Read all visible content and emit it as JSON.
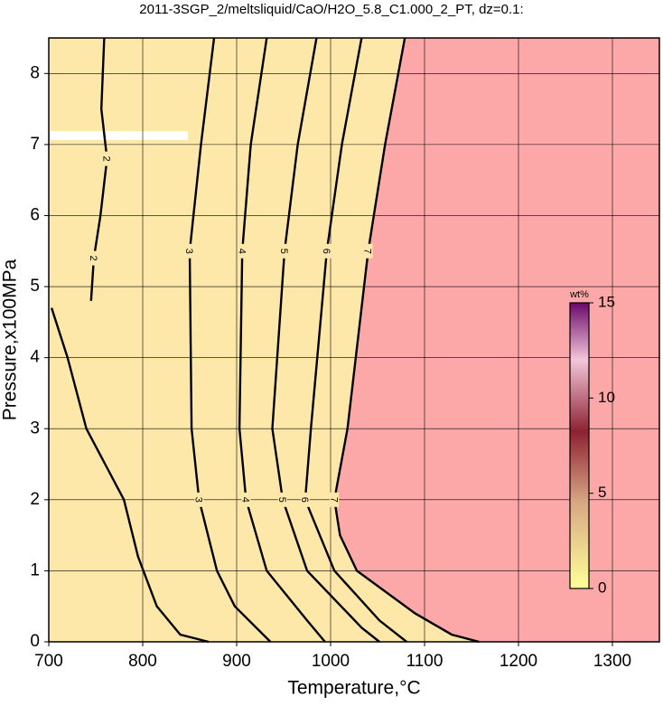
{
  "chart_data": {
    "type": "contour",
    "title": "2011-3SGP_2/meltsliquid/CaO/H2O_5.8_C1.000_2_PT, dz=0.1:",
    "x_label": "Temperature,°C",
    "y_label": "Pressure,x100MPa",
    "xlim": [
      700,
      1350
    ],
    "ylim": [
      0,
      8.5
    ],
    "xticks": [
      700,
      800,
      900,
      1000,
      1100,
      1200,
      1300
    ],
    "yticks": [
      0,
      1,
      2,
      3,
      4,
      5,
      6,
      7,
      8
    ],
    "grid": true,
    "colorbar": {
      "label": "wt%",
      "lim": [
        0,
        15
      ],
      "ticks": [
        0,
        5,
        10,
        15
      ]
    },
    "contours": [
      {
        "level": 2,
        "x": [
          759,
          756,
          762,
          755,
          748,
          745,
          null,
          703,
          720,
          740,
          760,
          780,
          795,
          815,
          840,
          870
        ],
        "y": [
          8.5,
          7.5,
          6.8,
          6,
          5.4,
          4.8,
          null,
          4.7,
          4,
          3,
          2.5,
          2,
          1.2,
          0.5,
          0.1,
          0
        ]
      },
      {
        "level": 3,
        "x": [
          876,
          862,
          850,
          852,
          860,
          879,
          898,
          936
        ],
        "y": [
          8.5,
          7,
          5.5,
          3,
          2,
          1,
          0.5,
          0
        ]
      },
      {
        "level": 4,
        "x": [
          932,
          915,
          906,
          903,
          910,
          932,
          975,
          994
        ],
        "y": [
          8.5,
          7,
          5.5,
          3,
          2,
          1,
          0.3,
          0
        ]
      },
      {
        "level": 5,
        "x": [
          985,
          965,
          951,
          938,
          949,
          975,
          1033,
          1052
        ],
        "y": [
          8.5,
          7,
          5.5,
          3,
          2,
          1,
          0.2,
          0
        ]
      },
      {
        "level": 6,
        "x": [
          1033,
          1012,
          996,
          979,
          973,
          1004,
          1052,
          1081
        ],
        "y": [
          8.5,
          7,
          5.5,
          3,
          2,
          1,
          0.3,
          0
        ]
      },
      {
        "level": 7,
        "x": [
          1079,
          1058,
          1040,
          1018,
          1004,
          1010,
          1028,
          1090,
          1129,
          1158
        ],
        "y": [
          8.5,
          7,
          5.5,
          3,
          2,
          1.5,
          1,
          0.4,
          0.1,
          0
        ]
      }
    ]
  }
}
